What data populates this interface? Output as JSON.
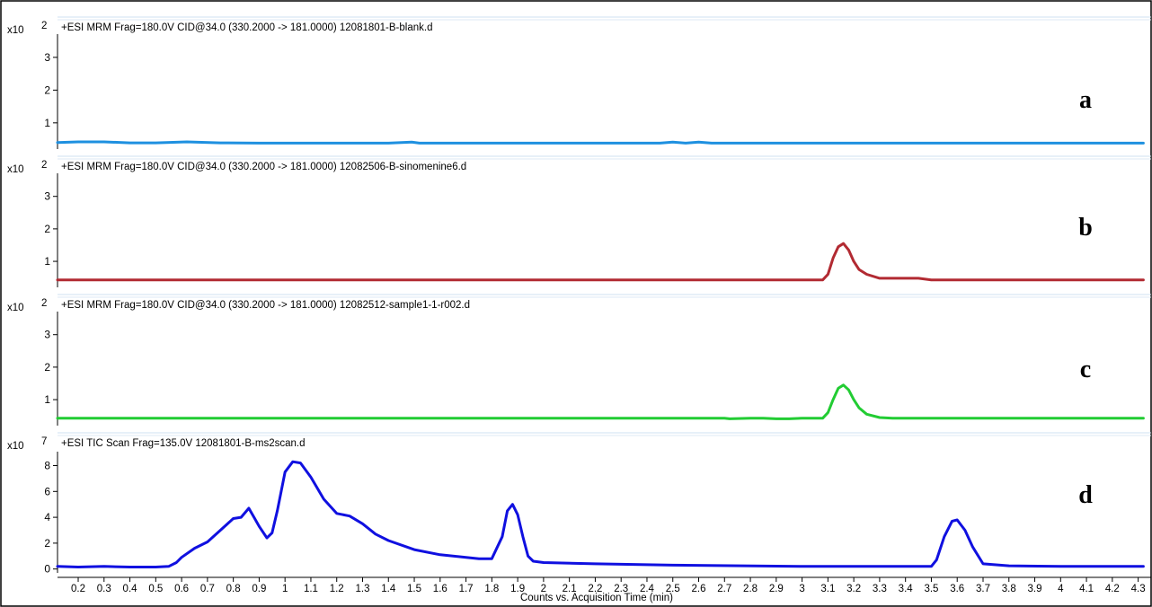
{
  "chart_data": [
    {
      "type": "line",
      "panel_letter": "a",
      "title": "+ESI MRM Frag=180.0V CID@34.0 (330.2000 -> 181.0000) 12081801-B-blank.d",
      "scale_prefix": "x10",
      "scale_exponent": "2",
      "ylim": [
        0.2,
        3.6
      ],
      "yticks": [
        1,
        2,
        3
      ],
      "color": "#1e90e0",
      "series": [
        {
          "x": [
            0.12,
            0.2,
            0.3,
            0.4,
            0.5,
            0.62,
            0.75,
            0.9,
            1.0,
            1.2,
            1.4,
            1.49,
            1.52,
            1.55,
            1.8,
            2.0,
            2.1,
            2.3,
            2.45,
            2.5,
            2.55,
            2.6,
            2.65,
            2.7,
            3.0,
            3.2,
            3.4,
            3.6,
            3.8,
            4.0,
            4.2,
            4.32
          ],
          "y": [
            0.4,
            0.42,
            0.42,
            0.39,
            0.39,
            0.42,
            0.39,
            0.38,
            0.38,
            0.38,
            0.38,
            0.41,
            0.38,
            0.38,
            0.38,
            0.38,
            0.38,
            0.38,
            0.38,
            0.41,
            0.38,
            0.41,
            0.38,
            0.38,
            0.38,
            0.38,
            0.38,
            0.38,
            0.38,
            0.38,
            0.38,
            0.38
          ]
        }
      ]
    },
    {
      "type": "line",
      "panel_letter": "b",
      "title": "+ESI MRM Frag=180.0V CID@34.0 (330.2000 -> 181.0000) 12082506-B-sinomenine6.d",
      "scale_prefix": "x10",
      "scale_exponent": "2",
      "ylim": [
        0.2,
        3.6
      ],
      "yticks": [
        1,
        2,
        3
      ],
      "color": "#b22a32",
      "series": [
        {
          "x": [
            0.12,
            1.0,
            2.0,
            3.0,
            3.08,
            3.1,
            3.12,
            3.14,
            3.16,
            3.18,
            3.2,
            3.22,
            3.25,
            3.3,
            3.45,
            3.5,
            4.0,
            4.32
          ],
          "y": [
            0.43,
            0.43,
            0.43,
            0.43,
            0.43,
            0.6,
            1.1,
            1.45,
            1.55,
            1.35,
            1.0,
            0.75,
            0.6,
            0.48,
            0.48,
            0.43,
            0.43,
            0.43
          ]
        }
      ]
    },
    {
      "type": "line",
      "panel_letter": "c",
      "title": "+ESI MRM Frag=180.0V CID@34.0 (330.2000 -> 181.0000) 12082512-sample1-1-r002.d",
      "scale_prefix": "x10",
      "scale_exponent": "2",
      "ylim": [
        0.2,
        3.6
      ],
      "yticks": [
        1,
        2,
        3
      ],
      "color": "#22cc33",
      "series": [
        {
          "x": [
            0.12,
            1.0,
            2.0,
            2.7,
            2.72,
            2.8,
            2.85,
            2.9,
            2.95,
            3.0,
            3.08,
            3.1,
            3.12,
            3.14,
            3.16,
            3.18,
            3.2,
            3.22,
            3.25,
            3.3,
            3.35,
            4.0,
            4.32
          ],
          "y": [
            0.43,
            0.43,
            0.43,
            0.43,
            0.41,
            0.43,
            0.43,
            0.41,
            0.41,
            0.43,
            0.43,
            0.6,
            1.0,
            1.35,
            1.45,
            1.3,
            1.0,
            0.75,
            0.55,
            0.45,
            0.43,
            0.43,
            0.43
          ]
        }
      ]
    },
    {
      "type": "line",
      "panel_letter": "d",
      "title": "+ESI TIC Scan Frag=135.0V 12081801-B-ms2scan.d",
      "scale_prefix": "x10",
      "scale_exponent": "7",
      "ylim": [
        -0.3,
        8.8
      ],
      "yticks": [
        0,
        2,
        4,
        6,
        8
      ],
      "color": "#1010e0",
      "series": [
        {
          "x": [
            0.12,
            0.2,
            0.3,
            0.4,
            0.5,
            0.55,
            0.58,
            0.6,
            0.65,
            0.7,
            0.75,
            0.8,
            0.83,
            0.86,
            0.88,
            0.9,
            0.93,
            0.95,
            0.97,
            1.0,
            1.03,
            1.06,
            1.1,
            1.15,
            1.2,
            1.25,
            1.3,
            1.35,
            1.4,
            1.5,
            1.6,
            1.7,
            1.75,
            1.8,
            1.84,
            1.86,
            1.88,
            1.9,
            1.92,
            1.94,
            1.96,
            2.0,
            2.2,
            2.5,
            3.0,
            3.3,
            3.5,
            3.52,
            3.55,
            3.58,
            3.6,
            3.63,
            3.66,
            3.7,
            3.8,
            4.0,
            4.32
          ],
          "y": [
            0.2,
            0.15,
            0.2,
            0.15,
            0.15,
            0.2,
            0.5,
            0.9,
            1.6,
            2.1,
            3.0,
            3.9,
            4.0,
            4.7,
            4.0,
            3.3,
            2.4,
            2.8,
            4.5,
            7.5,
            8.3,
            8.2,
            7.1,
            5.4,
            4.3,
            4.1,
            3.5,
            2.7,
            2.2,
            1.5,
            1.1,
            0.9,
            0.8,
            0.8,
            2.5,
            4.5,
            5.0,
            4.2,
            2.5,
            1.0,
            0.6,
            0.5,
            0.4,
            0.3,
            0.2,
            0.2,
            0.2,
            0.7,
            2.5,
            3.7,
            3.8,
            3.0,
            1.7,
            0.4,
            0.25,
            0.2,
            0.2
          ]
        }
      ]
    }
  ],
  "x_axis": {
    "range": [
      0.12,
      4.35
    ],
    "ticks": [
      0.2,
      0.3,
      0.4,
      0.5,
      0.6,
      0.7,
      0.8,
      0.9,
      1,
      1.1,
      1.2,
      1.3,
      1.4,
      1.5,
      1.6,
      1.7,
      1.8,
      1.9,
      2,
      2.1,
      2.2,
      2.3,
      2.4,
      2.5,
      2.6,
      2.7,
      2.8,
      2.9,
      3,
      3.1,
      3.2,
      3.3,
      3.4,
      3.5,
      3.6,
      3.7,
      3.8,
      3.9,
      4,
      4.1,
      4.2,
      4.3
    ],
    "label": "Counts vs. Acquisition Time (min)"
  }
}
